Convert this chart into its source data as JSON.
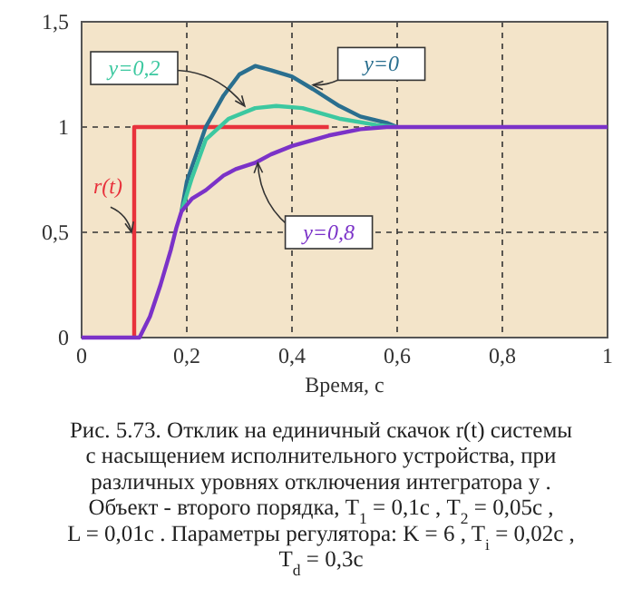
{
  "chart_data": {
    "type": "line",
    "xlabel": "Время, с",
    "xlim": [
      0,
      1
    ],
    "xticks": [
      0,
      {
        "value": 0.2,
        "label": "0,2"
      },
      {
        "value": 0.4,
        "label": "0,4"
      },
      {
        "value": 0.6,
        "label": "0,6"
      },
      {
        "value": 0.8,
        "label": "0,8"
      },
      1
    ],
    "ylim": [
      0,
      1.5
    ],
    "yticks": [
      0,
      {
        "value": 0.5,
        "label": "0,5"
      },
      1,
      {
        "value": 1.5,
        "label": "1,5"
      }
    ],
    "grid": true,
    "line_style": "solid",
    "marker": "none",
    "series": [
      {
        "name": "r(t)",
        "color": "#e8323c",
        "x": [
          0.1,
          0.1,
          0.47
        ],
        "values": [
          0,
          1,
          1
        ]
      },
      {
        "name": "y=0",
        "color": "#2a6f8f",
        "x": [
          0.19,
          0.2,
          0.236,
          0.27,
          0.3,
          0.33,
          0.36,
          0.4,
          0.44,
          0.49,
          0.53,
          0.58,
          0.6
        ],
        "values": [
          0.6,
          0.74,
          1,
          1.15,
          1.25,
          1.29,
          1.27,
          1.24,
          1.18,
          1.1,
          1.05,
          1.02,
          1
        ]
      },
      {
        "name": "y=0,2",
        "color": "#3cc8a0",
        "x": [
          0.19,
          0.21,
          0.236,
          0.28,
          0.33,
          0.37,
          0.42,
          0.49,
          0.56,
          0.6
        ],
        "values": [
          0.6,
          0.76,
          0.94,
          1.04,
          1.09,
          1.1,
          1.09,
          1.04,
          1.01,
          1
        ]
      },
      {
        "name": "y=0,8",
        "color": "#7b32c8",
        "x": [
          0,
          0.11,
          0.13,
          0.15,
          0.17,
          0.18,
          0.19,
          0.21,
          0.236,
          0.27,
          0.293,
          0.33,
          0.36,
          0.4,
          0.47,
          0.53,
          0.58,
          1
        ],
        "values": [
          0,
          0,
          0.1,
          0.25,
          0.42,
          0.52,
          0.6,
          0.66,
          0.7,
          0.77,
          0.8,
          0.83,
          0.87,
          0.91,
          0.96,
          0.99,
          1,
          1
        ]
      }
    ],
    "annotations": [
      "Рис. 5.73. Отклик на единичный скачок r(t) системы",
      "с насыщением исполнительного устройства, при",
      "различных уровнях отключения интегратора y .",
      "Объект - второго порядка, T$_{1}$ = 0,1с , T$_{2}$ = 0,05с ,",
      "L = 0,01с . Параметры регулятора: K = 6 , T$_{i}$ = 0,02с ,",
      "T$_{d}$ = 0,3с"
    ]
  }
}
